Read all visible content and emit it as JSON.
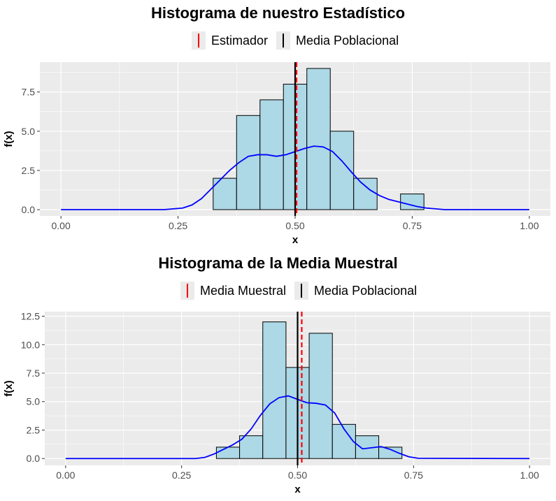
{
  "charts": [
    {
      "title": "Histograma de nuestro Estadístico",
      "legend": [
        {
          "label": "Estimador",
          "color": "#ff0000"
        },
        {
          "label": "Media Poblacional",
          "color": "#000000"
        }
      ]
    },
    {
      "title": "Histograma de la Media Muestral",
      "legend": [
        {
          "label": "Media Muestral",
          "color": "#ff0000"
        },
        {
          "label": "Media Poblacional",
          "color": "#000000"
        }
      ]
    }
  ],
  "chart_data": [
    {
      "type": "bar",
      "title": "Histograma de nuestro Estadístico",
      "xlabel": "x",
      "ylabel": "f(x)",
      "xlim": [
        0,
        1
      ],
      "ylim": [
        -0.4,
        9.4
      ],
      "xticks": [
        "0.00",
        "0.25",
        "0.50",
        "0.75",
        "1.00"
      ],
      "yticks": [
        "0.0",
        "2.5",
        "5.0",
        "7.5"
      ],
      "bins": [
        {
          "x0": 0.325,
          "x1": 0.375,
          "value": 2
        },
        {
          "x0": 0.375,
          "x1": 0.425,
          "value": 6
        },
        {
          "x0": 0.425,
          "x1": 0.475,
          "value": 7
        },
        {
          "x0": 0.475,
          "x1": 0.525,
          "value": 8
        },
        {
          "x0": 0.525,
          "x1": 0.575,
          "value": 9
        },
        {
          "x0": 0.575,
          "x1": 0.625,
          "value": 5
        },
        {
          "x0": 0.625,
          "x1": 0.675,
          "value": 2
        },
        {
          "x0": 0.725,
          "x1": 0.775,
          "value": 1
        }
      ],
      "density": {
        "x": [
          0,
          0.22,
          0.26,
          0.28,
          0.3,
          0.32,
          0.34,
          0.36,
          0.38,
          0.4,
          0.42,
          0.44,
          0.46,
          0.48,
          0.5,
          0.52,
          0.54,
          0.56,
          0.58,
          0.6,
          0.62,
          0.64,
          0.66,
          0.68,
          0.7,
          0.72,
          0.74,
          0.76,
          0.78,
          0.8,
          0.82,
          1
        ],
        "y": [
          0,
          0,
          0.1,
          0.3,
          0.7,
          1.3,
          1.9,
          2.5,
          3.0,
          3.4,
          3.5,
          3.5,
          3.4,
          3.5,
          3.7,
          3.9,
          4.05,
          4.0,
          3.7,
          3.1,
          2.4,
          1.75,
          1.25,
          0.9,
          0.65,
          0.5,
          0.35,
          0.2,
          0.1,
          0.05,
          0,
          0
        ],
        "color": "#0000ff"
      },
      "vlines": [
        {
          "x": 0.5,
          "color": "#000000",
          "style": "solid"
        },
        {
          "x": 0.503,
          "color": "#ff0000",
          "style": "dashed"
        }
      ],
      "bar_fill": "#add8e6",
      "panel_bg": "#ebebeb",
      "legend_position": "top"
    },
    {
      "type": "bar",
      "title": "Histograma de la Media Muestral",
      "xlabel": "x",
      "ylabel": "f(x)",
      "xlim": [
        0,
        1
      ],
      "ylim": [
        -0.6,
        12.9
      ],
      "xticks": [
        "0.00",
        "0.25",
        "0.50",
        "0.75",
        "1.00"
      ],
      "yticks": [
        "0.0",
        "2.5",
        "5.0",
        "7.5",
        "10.0",
        "12.5"
      ],
      "bins": [
        {
          "x0": 0.325,
          "x1": 0.375,
          "value": 1
        },
        {
          "x0": 0.375,
          "x1": 0.425,
          "value": 2
        },
        {
          "x0": 0.425,
          "x1": 0.475,
          "value": 12
        },
        {
          "x0": 0.475,
          "x1": 0.525,
          "value": 8
        },
        {
          "x0": 0.525,
          "x1": 0.575,
          "value": 11
        },
        {
          "x0": 0.575,
          "x1": 0.625,
          "value": 3
        },
        {
          "x0": 0.625,
          "x1": 0.675,
          "value": 2
        },
        {
          "x0": 0.675,
          "x1": 0.725,
          "value": 1
        }
      ],
      "density": {
        "x": [
          0,
          0.28,
          0.3,
          0.32,
          0.34,
          0.36,
          0.38,
          0.4,
          0.42,
          0.44,
          0.46,
          0.48,
          0.5,
          0.52,
          0.54,
          0.56,
          0.58,
          0.6,
          0.62,
          0.64,
          0.66,
          0.68,
          0.7,
          0.72,
          0.74,
          0.76,
          1
        ],
        "y": [
          0,
          0,
          0.1,
          0.4,
          0.8,
          1.2,
          1.7,
          2.6,
          3.8,
          4.8,
          5.35,
          5.5,
          5.2,
          4.9,
          4.85,
          4.7,
          4.0,
          2.6,
          1.5,
          0.85,
          0.95,
          1.05,
          0.8,
          0.45,
          0.15,
          0.02,
          0
        ],
        "color": "#0000ff"
      },
      "vlines": [
        {
          "x": 0.5,
          "color": "#000000",
          "style": "solid"
        },
        {
          "x": 0.509,
          "color": "#ff0000",
          "style": "dashed"
        }
      ],
      "bar_fill": "#add8e6",
      "panel_bg": "#ebebeb",
      "legend_position": "top"
    }
  ]
}
